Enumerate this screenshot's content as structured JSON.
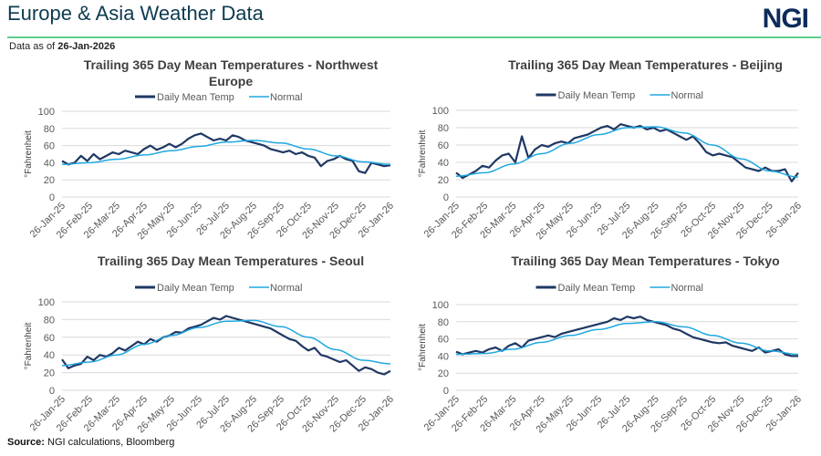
{
  "header": {
    "title": "Europe & Asia Weather Data",
    "logo": "NGI",
    "as_of_label": "Data as of",
    "as_of_date": "26-Jan-2026"
  },
  "footer": {
    "source_label": "Source:",
    "source_text": "NGI calculations, Bloomberg"
  },
  "colors": {
    "daily": "#1f3864",
    "normal": "#1fa8e0",
    "rule": "#5ccf8f",
    "grid": "#d9d9d9"
  },
  "chart_data": [
    {
      "type": "line",
      "title": [
        "Trailing 365 Day Mean Temperatures - Northwest",
        "Europe"
      ],
      "ylabel": "°Fahrenheit",
      "ylim": [
        0,
        100
      ],
      "yticks": [
        0,
        20,
        40,
        60,
        80,
        100
      ],
      "xticks": [
        "26-Jan-25",
        "26-Feb-25",
        "26-Mar-25",
        "26-Apr-25",
        "26-May-25",
        "26-Jun-25",
        "26-Jul-25",
        "26-Aug-25",
        "26-Sep-25",
        "26-Oct-25",
        "26-Nov-25",
        "26-Dec-25",
        "26-Jan-26"
      ],
      "legend": [
        "Daily Mean Temp",
        "Normal"
      ],
      "legend_position": "top",
      "grid": true,
      "series": [
        {
          "name": "Daily Mean Temp",
          "sampling": "weekly",
          "values": [
            42,
            38,
            40,
            48,
            42,
            50,
            44,
            48,
            52,
            50,
            54,
            52,
            50,
            56,
            60,
            55,
            58,
            62,
            58,
            62,
            68,
            72,
            74,
            70,
            66,
            68,
            66,
            72,
            70,
            66,
            64,
            62,
            60,
            56,
            54,
            52,
            54,
            50,
            52,
            48,
            46,
            36,
            42,
            44,
            48,
            44,
            42,
            30,
            28,
            40,
            38,
            36,
            37
          ]
        },
        {
          "name": "Normal",
          "sampling": "monthly",
          "values": [
            38,
            40,
            44,
            49,
            54,
            59,
            64,
            66,
            63,
            56,
            48,
            41,
            38
          ]
        }
      ]
    },
    {
      "type": "line",
      "title": [
        "Trailing 365 Day Mean Temperatures - Beijing"
      ],
      "ylabel": "°Fahrenheit",
      "ylim": [
        0,
        100
      ],
      "yticks": [
        0,
        20,
        40,
        60,
        80,
        100
      ],
      "xticks": [
        "26-Jan-25",
        "26-Feb-25",
        "26-Mar-25",
        "26-Apr-25",
        "26-May-25",
        "26-Jun-25",
        "26-Jul-25",
        "26-Aug-25",
        "26-Sep-25",
        "26-Oct-25",
        "26-Nov-25",
        "26-Dec-25",
        "26-Jan-26"
      ],
      "legend": [
        "Daily Mean Temp",
        "Normal"
      ],
      "legend_position": "top",
      "grid": true,
      "series": [
        {
          "name": "Daily Mean Temp",
          "sampling": "weekly",
          "values": [
            28,
            22,
            26,
            30,
            36,
            34,
            42,
            48,
            50,
            40,
            70,
            45,
            55,
            60,
            58,
            62,
            64,
            62,
            68,
            70,
            72,
            76,
            80,
            82,
            78,
            84,
            82,
            80,
            82,
            78,
            80,
            76,
            78,
            74,
            70,
            66,
            70,
            62,
            52,
            48,
            50,
            48,
            46,
            40,
            34,
            32,
            30,
            34,
            30,
            30,
            32,
            18,
            28
          ]
        },
        {
          "name": "Normal",
          "sampling": "monthly",
          "values": [
            24,
            28,
            38,
            50,
            62,
            72,
            80,
            81,
            74,
            60,
            44,
            30,
            23
          ]
        }
      ]
    },
    {
      "type": "line",
      "title": [
        "Trailing 365 Day Mean Temperatures - Seoul"
      ],
      "ylabel": "°Fahrenheit",
      "ylim": [
        0,
        100
      ],
      "yticks": [
        0,
        20,
        40,
        60,
        80,
        100
      ],
      "xticks": [
        "26-Jan-25",
        "26-Feb-25",
        "26-Mar-25",
        "26-Apr-25",
        "26-May-25",
        "26-Jun-25",
        "26-Jul-25",
        "26-Aug-25",
        "26-Sep-25",
        "26-Oct-25",
        "26-Nov-25",
        "26-Dec-25",
        "26-Jan-26"
      ],
      "legend": [
        "Daily Mean Temp",
        "Normal"
      ],
      "legend_position": "top",
      "grid": true,
      "series": [
        {
          "name": "Daily Mean Temp",
          "sampling": "weekly",
          "values": [
            35,
            25,
            28,
            30,
            38,
            34,
            40,
            38,
            42,
            48,
            45,
            50,
            55,
            52,
            58,
            55,
            60,
            62,
            66,
            65,
            70,
            72,
            74,
            78,
            82,
            80,
            84,
            82,
            80,
            78,
            76,
            74,
            72,
            70,
            66,
            62,
            58,
            56,
            50,
            45,
            48,
            40,
            38,
            35,
            32,
            34,
            28,
            22,
            26,
            24,
            20,
            18,
            22
          ]
        },
        {
          "name": "Normal",
          "sampling": "monthly",
          "values": [
            28,
            32,
            40,
            52,
            62,
            71,
            78,
            79,
            72,
            60,
            46,
            34,
            30
          ]
        }
      ]
    },
    {
      "type": "line",
      "title": [
        "Trailing 365 Day Mean Temperatures - Tokyo"
      ],
      "ylabel": "°Fahrenheit",
      "ylim": [
        0,
        100
      ],
      "yticks": [
        0,
        20,
        40,
        60,
        80,
        100
      ],
      "xticks": [
        "26-Jan-25",
        "26-Feb-25",
        "26-Mar-25",
        "26-Apr-25",
        "26-May-25",
        "26-Jun-25",
        "26-Jul-25",
        "26-Aug-25",
        "26-Sep-25",
        "26-Oct-25",
        "26-Nov-25",
        "26-Dec-25",
        "26-Jan-26"
      ],
      "legend": [
        "Daily Mean Temp",
        "Normal"
      ],
      "legend_position": "top",
      "grid": true,
      "series": [
        {
          "name": "Daily Mean Temp",
          "sampling": "weekly",
          "values": [
            45,
            42,
            44,
            46,
            44,
            48,
            50,
            46,
            52,
            55,
            50,
            58,
            60,
            62,
            64,
            62,
            66,
            68,
            70,
            72,
            74,
            76,
            78,
            80,
            84,
            82,
            86,
            84,
            86,
            82,
            80,
            78,
            76,
            72,
            70,
            66,
            62,
            60,
            58,
            56,
            55,
            56,
            52,
            50,
            48,
            46,
            50,
            44,
            46,
            48,
            42,
            40,
            40
          ]
        },
        {
          "name": "Normal",
          "sampling": "monthly",
          "values": [
            42,
            43,
            48,
            56,
            64,
            71,
            78,
            80,
            74,
            64,
            55,
            46,
            42
          ]
        }
      ]
    }
  ]
}
